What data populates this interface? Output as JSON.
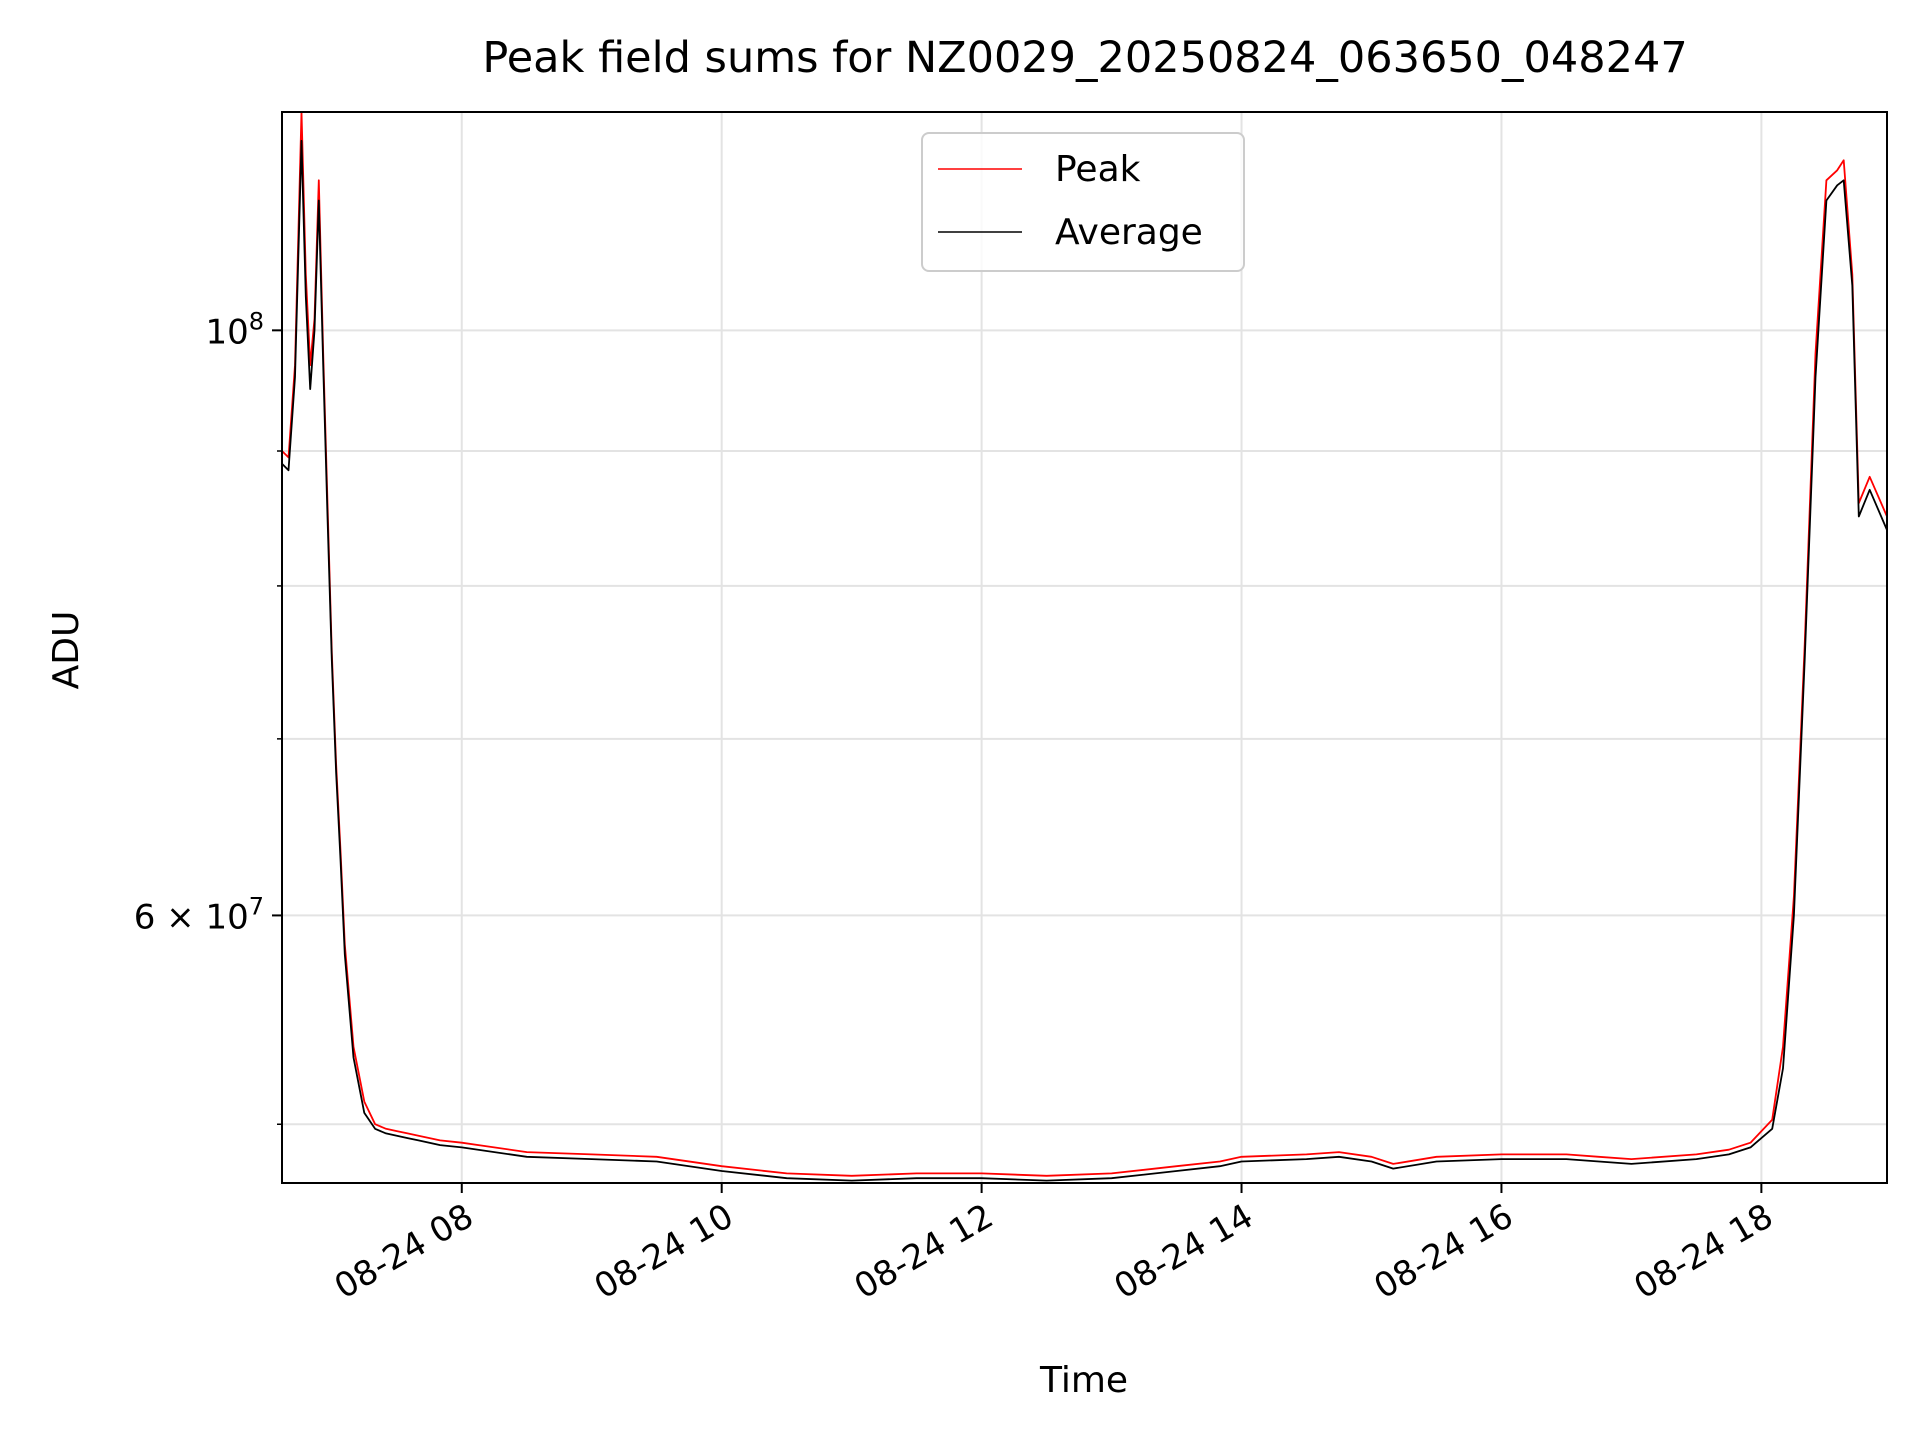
{
  "chart_data": {
    "type": "line",
    "title": "Peak field sums for NZ0029_20250824_063650_048247",
    "xlabel": "Time",
    "ylabel": "ADU",
    "y_scale": "log",
    "ylim": [
      47500000,
      121000000
    ],
    "xlim": [
      "2025-08-24 06:37",
      "2025-08-24 18:58"
    ],
    "x_ticks": [
      {
        "time": "2025-08-24 08:00",
        "label": "08-24 08"
      },
      {
        "time": "2025-08-24 10:00",
        "label": "08-24 10"
      },
      {
        "time": "2025-08-24 12:00",
        "label": "08-24 12"
      },
      {
        "time": "2025-08-24 14:00",
        "label": "08-24 14"
      },
      {
        "time": "2025-08-24 16:00",
        "label": "08-24 16"
      },
      {
        "time": "2025-08-24 18:00",
        "label": "08-24 18"
      }
    ],
    "y_major_ticks": [
      {
        "value": 100000000,
        "mantissa": "",
        "exp": "8"
      },
      {
        "value": 60000000,
        "mantissa": "6",
        "exp": "7"
      }
    ],
    "y_minor_gridlines": [
      50000000,
      70000000,
      80000000,
      90000000
    ],
    "grid": true,
    "legend": {
      "position": "top-center",
      "entries": [
        "Peak",
        "Average"
      ]
    },
    "series": [
      {
        "name": "Average",
        "color": "#000000",
        "x": [
          "2025-08-24 06:37",
          "2025-08-24 06:40",
          "2025-08-24 06:43",
          "2025-08-24 06:46",
          "2025-08-24 06:48",
          "2025-08-24 06:50",
          "2025-08-24 06:52",
          "2025-08-24 06:54",
          "2025-08-24 06:56",
          "2025-08-24 06:58",
          "2025-08-24 07:00",
          "2025-08-24 07:02",
          "2025-08-24 07:04",
          "2025-08-24 07:06",
          "2025-08-24 07:10",
          "2025-08-24 07:15",
          "2025-08-24 07:20",
          "2025-08-24 07:25",
          "2025-08-24 07:30",
          "2025-08-24 07:35",
          "2025-08-24 07:40",
          "2025-08-24 07:50",
          "2025-08-24 08:00",
          "2025-08-24 08:30",
          "2025-08-24 09:00",
          "2025-08-24 09:30",
          "2025-08-24 10:00",
          "2025-08-24 10:30",
          "2025-08-24 11:00",
          "2025-08-24 11:30",
          "2025-08-24 12:00",
          "2025-08-24 12:30",
          "2025-08-24 13:00",
          "2025-08-24 13:30",
          "2025-08-24 13:50",
          "2025-08-24 14:00",
          "2025-08-24 14:30",
          "2025-08-24 14:45",
          "2025-08-24 15:00",
          "2025-08-24 15:10",
          "2025-08-24 15:30",
          "2025-08-24 16:00",
          "2025-08-24 16:30",
          "2025-08-24 16:45",
          "2025-08-24 17:00",
          "2025-08-24 17:30",
          "2025-08-24 17:45",
          "2025-08-24 17:55",
          "2025-08-24 18:05",
          "2025-08-24 18:10",
          "2025-08-24 18:15",
          "2025-08-24 18:20",
          "2025-08-24 18:25",
          "2025-08-24 18:30",
          "2025-08-24 18:35",
          "2025-08-24 18:38",
          "2025-08-24 18:42",
          "2025-08-24 18:45",
          "2025-08-24 18:50",
          "2025-08-24 18:58"
        ],
        "y": [
          89000000,
          88500000,
          96000000,
          118000000,
          103000000,
          95000000,
          100000000,
          112000000,
          97000000,
          85000000,
          75000000,
          68000000,
          63000000,
          58000000,
          53000000,
          50500000,
          49800000,
          49600000,
          49500000,
          49400000,
          49300000,
          49100000,
          49000000,
          48600000,
          48500000,
          48400000,
          48000000,
          47700000,
          47600000,
          47700000,
          47700000,
          47600000,
          47700000,
          48000000,
          48200000,
          48400000,
          48500000,
          48600000,
          48400000,
          48100000,
          48400000,
          48500000,
          48500000,
          48400000,
          48300000,
          48500000,
          48700000,
          49000000,
          49800000,
          52500000,
          60000000,
          75000000,
          96000000,
          112000000,
          113500000,
          114000000,
          104000000,
          85000000,
          87000000,
          84000000
        ]
      },
      {
        "name": "Peak",
        "color": "#ff0000",
        "x": [
          "2025-08-24 06:37",
          "2025-08-24 06:40",
          "2025-08-24 06:43",
          "2025-08-24 06:46",
          "2025-08-24 06:48",
          "2025-08-24 06:50",
          "2025-08-24 06:52",
          "2025-08-24 06:54",
          "2025-08-24 06:56",
          "2025-08-24 06:58",
          "2025-08-24 07:00",
          "2025-08-24 07:02",
          "2025-08-24 07:04",
          "2025-08-24 07:06",
          "2025-08-24 07:10",
          "2025-08-24 07:15",
          "2025-08-24 07:20",
          "2025-08-24 07:25",
          "2025-08-24 07:30",
          "2025-08-24 07:35",
          "2025-08-24 07:40",
          "2025-08-24 07:50",
          "2025-08-24 08:00",
          "2025-08-24 08:30",
          "2025-08-24 09:00",
          "2025-08-24 09:30",
          "2025-08-24 10:00",
          "2025-08-24 10:30",
          "2025-08-24 11:00",
          "2025-08-24 11:30",
          "2025-08-24 12:00",
          "2025-08-24 12:30",
          "2025-08-24 13:00",
          "2025-08-24 13:30",
          "2025-08-24 13:50",
          "2025-08-24 14:00",
          "2025-08-24 14:30",
          "2025-08-24 14:45",
          "2025-08-24 15:00",
          "2025-08-24 15:10",
          "2025-08-24 15:30",
          "2025-08-24 16:00",
          "2025-08-24 16:30",
          "2025-08-24 16:45",
          "2025-08-24 17:00",
          "2025-08-24 17:30",
          "2025-08-24 17:45",
          "2025-08-24 17:55",
          "2025-08-24 18:05",
          "2025-08-24 18:10",
          "2025-08-24 18:15",
          "2025-08-24 18:20",
          "2025-08-24 18:25",
          "2025-08-24 18:30",
          "2025-08-24 18:35",
          "2025-08-24 18:38",
          "2025-08-24 18:42",
          "2025-08-24 18:45",
          "2025-08-24 18:50",
          "2025-08-24 18:58"
        ],
        "y": [
          90000000,
          89500000,
          97000000,
          121000000,
          105000000,
          97000000,
          101000000,
          114000000,
          98000000,
          86000000,
          75500000,
          68500000,
          63500000,
          58500000,
          53500000,
          51000000,
          50000000,
          49800000,
          49700000,
          49600000,
          49500000,
          49300000,
          49200000,
          48800000,
          48700000,
          48600000,
          48200000,
          47900000,
          47800000,
          47900000,
          47900000,
          47800000,
          47900000,
          48200000,
          48400000,
          48600000,
          48700000,
          48800000,
          48600000,
          48300000,
          48600000,
          48700000,
          48700000,
          48600000,
          48500000,
          48700000,
          48900000,
          49200000,
          50200000,
          53500000,
          61000000,
          76000000,
          98000000,
          114000000,
          115000000,
          116000000,
          105000000,
          86000000,
          88000000,
          85000000
        ]
      }
    ]
  }
}
